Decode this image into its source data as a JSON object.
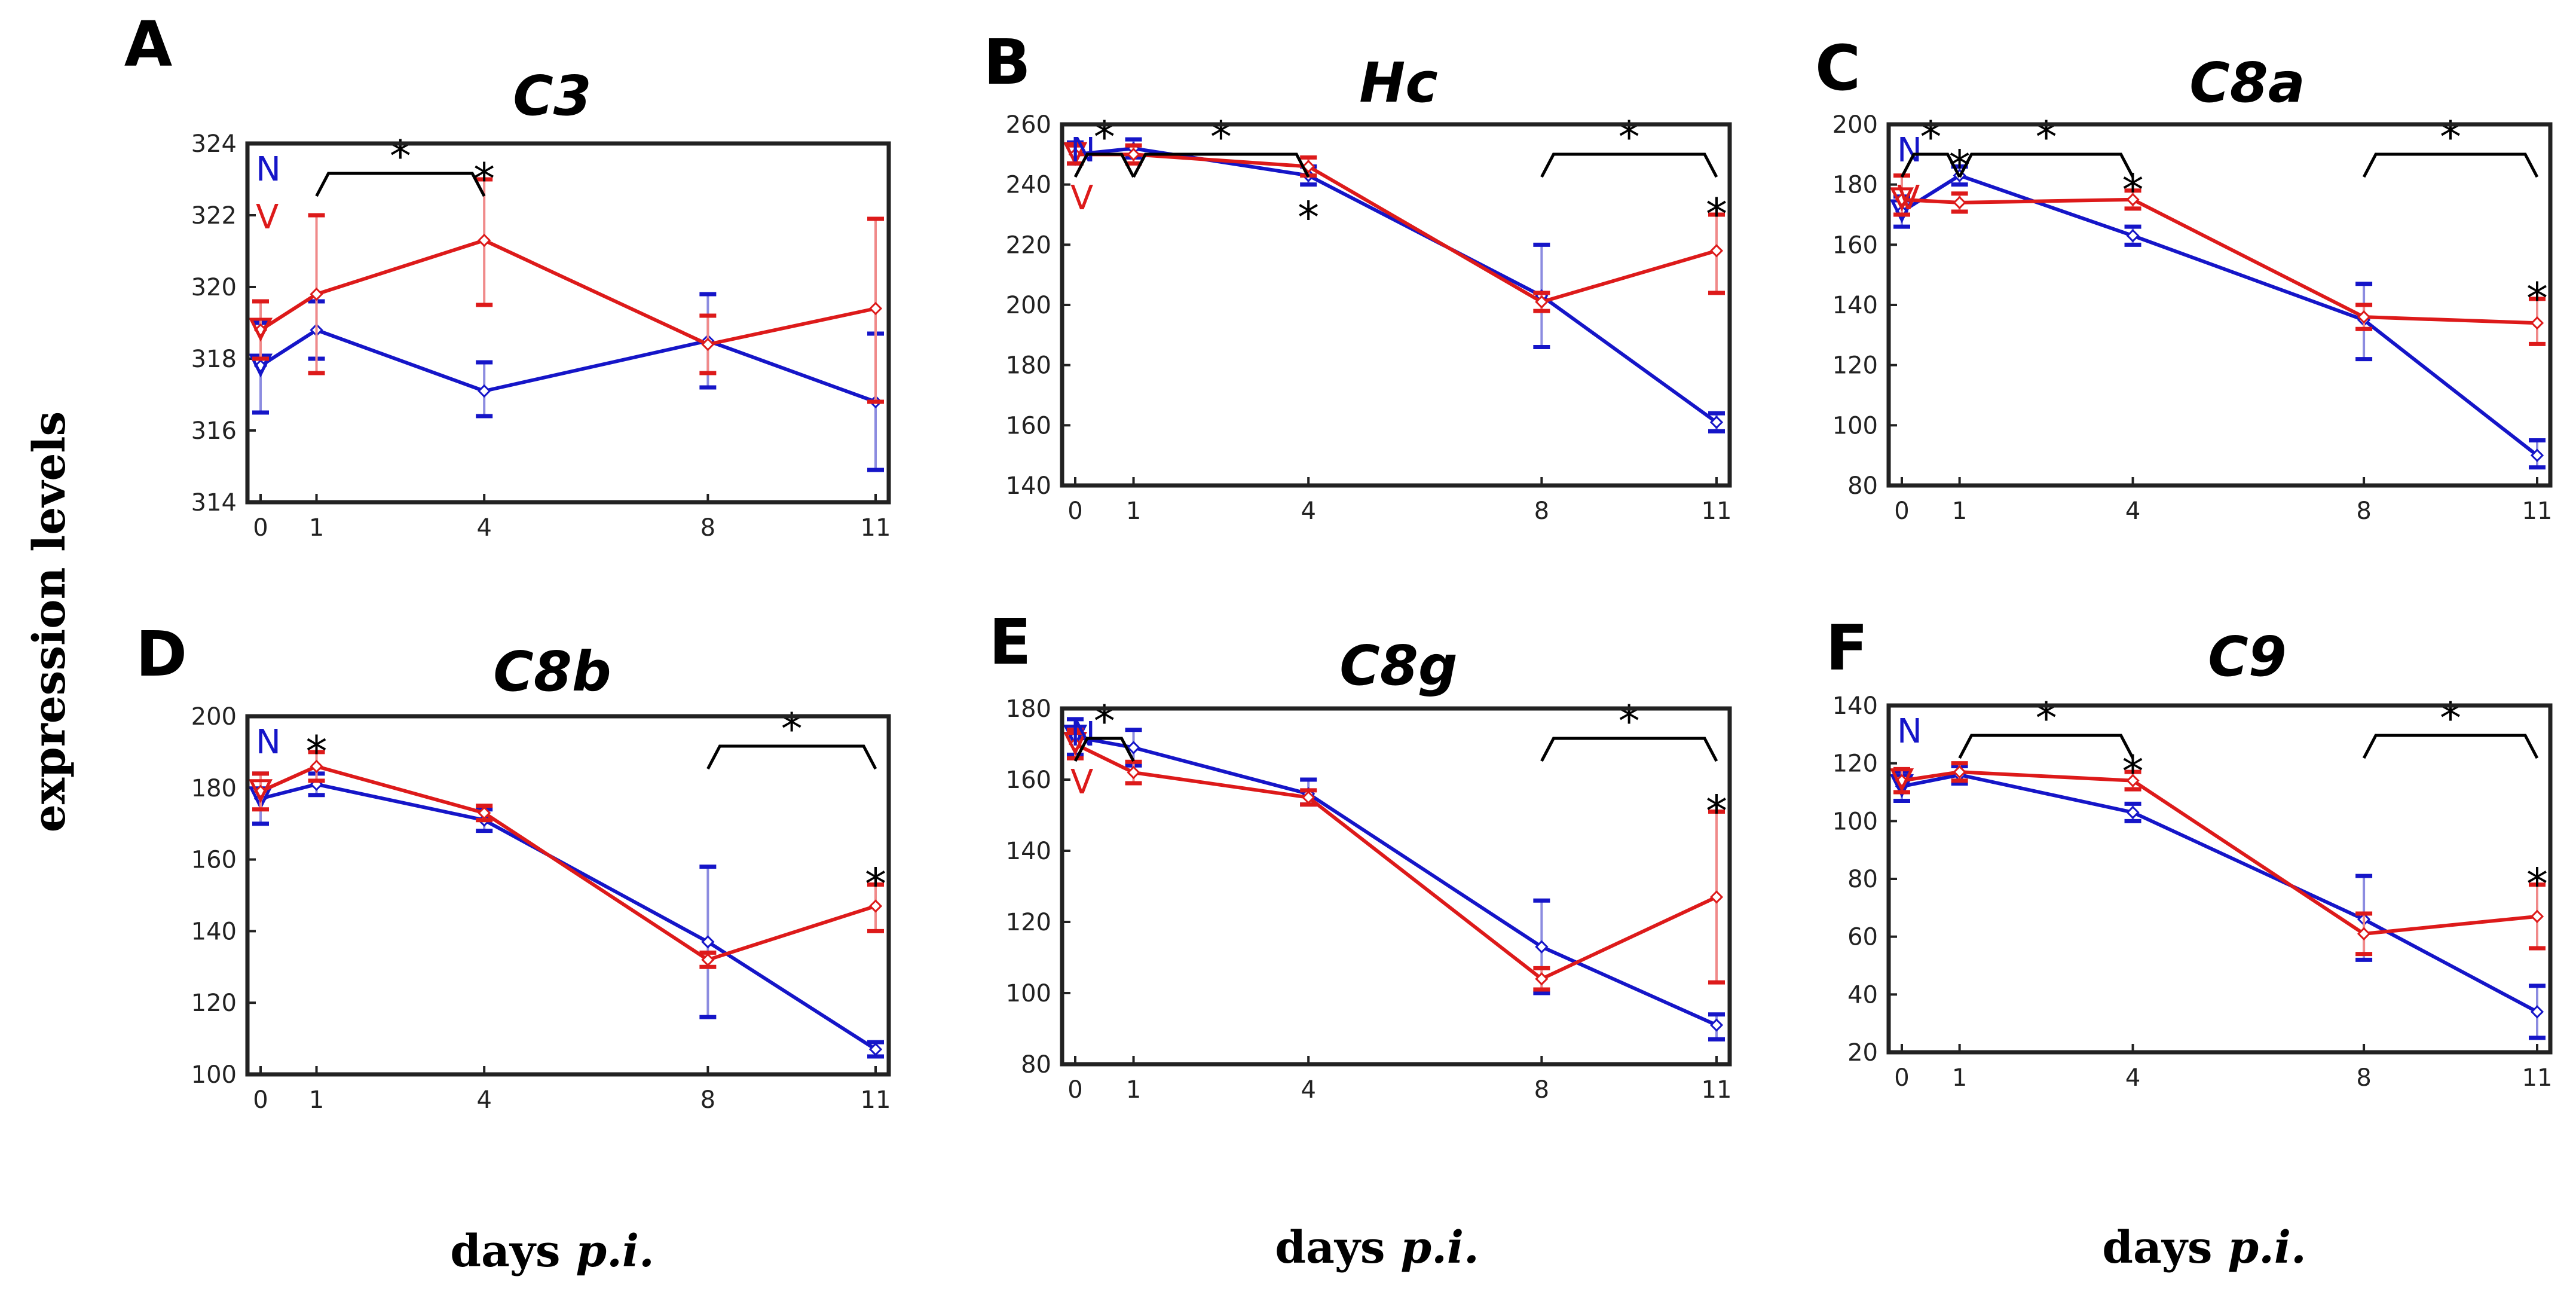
{
  "figure": {
    "ylabel": "expression levels",
    "xlabel_prefix": "days ",
    "xlabel_italic": "p.i."
  },
  "colors": {
    "N": "#1515c8",
    "V": "#dd1a1a",
    "N_err": "#8c8ce0",
    "V_err": "#f08a8a"
  },
  "chart_data": [
    {
      "type": "line",
      "panel": "A",
      "title": "C3",
      "x": [
        0,
        1,
        4,
        8,
        11
      ],
      "xticks": [
        "0",
        "1",
        "4",
        "8",
        "11"
      ],
      "ylim": [
        314,
        324
      ],
      "yticks": [
        314,
        316,
        318,
        320,
        322,
        324
      ],
      "legend": [
        "N",
        "V"
      ],
      "series": [
        {
          "name": "N",
          "values": [
            317.8,
            318.8,
            317.1,
            318.5,
            316.8
          ],
          "err_low": [
            316.5,
            318.0,
            316.4,
            317.2,
            314.9
          ],
          "err_high": [
            319.0,
            319.6,
            317.9,
            319.8,
            318.7
          ]
        },
        {
          "name": "V",
          "values": [
            318.8,
            319.8,
            321.3,
            318.4,
            319.4
          ],
          "err_low": [
            318.0,
            317.6,
            319.5,
            317.6,
            316.8
          ],
          "err_high": [
            319.6,
            322.0,
            323.0,
            319.2,
            321.9
          ]
        }
      ],
      "brackets": [
        {
          "from": 1,
          "to": 4,
          "label": "*"
        }
      ],
      "point_stars": [
        {
          "x": 4,
          "label": "*"
        }
      ],
      "low_stars": []
    },
    {
      "type": "line",
      "panel": "B",
      "title": "Hc",
      "x": [
        0,
        1,
        4,
        8,
        11
      ],
      "xticks": [
        "0",
        "1",
        "4",
        "8",
        "11"
      ],
      "ylim": [
        140,
        260
      ],
      "yticks": [
        140,
        160,
        180,
        200,
        220,
        240,
        260
      ],
      "legend": [
        "N",
        "V"
      ],
      "series": [
        {
          "name": "N",
          "values": [
            250,
            252,
            243,
            203,
            161
          ],
          "err_low": [
            247,
            249,
            240,
            186,
            158
          ],
          "err_high": [
            254,
            255,
            246,
            220,
            164
          ]
        },
        {
          "name": "V",
          "values": [
            250,
            250,
            246,
            201,
            218
          ],
          "err_low": [
            247,
            247,
            243,
            198,
            204
          ],
          "err_high": [
            253,
            253,
            249,
            204,
            230
          ]
        }
      ],
      "brackets": [
        {
          "from": 0,
          "to": 1,
          "label": "*"
        },
        {
          "from": 1,
          "to": 4,
          "label": "*"
        },
        {
          "from": 8,
          "to": 11,
          "label": "*"
        }
      ],
      "point_stars": [
        {
          "x": 11,
          "label": "*"
        }
      ],
      "low_stars": [
        {
          "x": 4,
          "label": "*"
        }
      ]
    },
    {
      "type": "line",
      "panel": "C",
      "title": "C8a",
      "x": [
        0,
        1,
        4,
        8,
        11
      ],
      "xticks": [
        "0",
        "1",
        "4",
        "8",
        "11"
      ],
      "ylim": [
        80,
        200
      ],
      "yticks": [
        80,
        100,
        120,
        140,
        160,
        180,
        200
      ],
      "legend": [
        "N",
        "V"
      ],
      "series": [
        {
          "name": "N",
          "values": [
            171,
            183,
            163,
            135,
            90
          ],
          "err_low": [
            166,
            180,
            160,
            122,
            86
          ],
          "err_high": [
            176,
            186,
            166,
            147,
            95
          ]
        },
        {
          "name": "V",
          "values": [
            175,
            174,
            175,
            136,
            134
          ],
          "err_low": [
            170,
            171,
            172,
            132,
            127
          ],
          "err_high": [
            183,
            177,
            178,
            140,
            142
          ]
        }
      ],
      "brackets": [
        {
          "from": 0,
          "to": 1,
          "label": "*"
        },
        {
          "from": 1,
          "to": 4,
          "label": "*"
        },
        {
          "from": 8,
          "to": 11,
          "label": "*"
        }
      ],
      "point_stars": [
        {
          "x": 1,
          "label": "*"
        },
        {
          "x": 4,
          "label": "*"
        },
        {
          "x": 11,
          "label": "*"
        }
      ],
      "low_stars": []
    },
    {
      "type": "line",
      "panel": "D",
      "title": "C8b",
      "x": [
        0,
        1,
        4,
        8,
        11
      ],
      "xticks": [
        "0",
        "1",
        "4",
        "8",
        "11"
      ],
      "ylim": [
        100,
        200
      ],
      "yticks": [
        100,
        120,
        140,
        160,
        180,
        200
      ],
      "legend": [
        "N"
      ],
      "series": [
        {
          "name": "N",
          "values": [
            177,
            181,
            171,
            137,
            107
          ],
          "err_low": [
            170,
            178,
            168,
            116,
            105
          ],
          "err_high": [
            184,
            184,
            174,
            158,
            109
          ]
        },
        {
          "name": "V",
          "values": [
            179,
            186,
            173,
            132,
            147
          ],
          "err_low": [
            174,
            182,
            171,
            130,
            140
          ],
          "err_high": [
            184,
            190,
            175,
            134,
            153
          ]
        }
      ],
      "brackets": [
        {
          "from": 8,
          "to": 11,
          "label": "*"
        }
      ],
      "point_stars": [
        {
          "x": 1,
          "label": "*"
        },
        {
          "x": 11,
          "label": "*"
        }
      ],
      "low_stars": []
    },
    {
      "type": "line",
      "panel": "E",
      "title": "C8g",
      "x": [
        0,
        1,
        4,
        8,
        11
      ],
      "xticks": [
        "0",
        "1",
        "4",
        "8",
        "11"
      ],
      "ylim": [
        80,
        180
      ],
      "yticks": [
        80,
        100,
        120,
        140,
        160,
        180
      ],
      "legend": [
        "N",
        "V"
      ],
      "series": [
        {
          "name": "N",
          "values": [
            172,
            169,
            156,
            113,
            91
          ],
          "err_low": [
            167,
            164,
            153,
            100,
            87
          ],
          "err_high": [
            177,
            174,
            160,
            126,
            94
          ]
        },
        {
          "name": "V",
          "values": [
            170,
            162,
            155,
            104,
            127
          ],
          "err_low": [
            166,
            159,
            153,
            101,
            103
          ],
          "err_high": [
            174,
            165,
            157,
            107,
            151
          ]
        }
      ],
      "brackets": [
        {
          "from": 0,
          "to": 1,
          "label": "*"
        },
        {
          "from": 8,
          "to": 11,
          "label": "*"
        }
      ],
      "point_stars": [
        {
          "x": 11,
          "label": "*"
        }
      ],
      "low_stars": []
    },
    {
      "type": "line",
      "panel": "F",
      "title": "C9",
      "x": [
        0,
        1,
        4,
        8,
        11
      ],
      "xticks": [
        "0",
        "1",
        "4",
        "8",
        "11"
      ],
      "ylim": [
        20,
        140
      ],
      "yticks": [
        20,
        40,
        60,
        80,
        100,
        120,
        140
      ],
      "legend": [
        "N"
      ],
      "series": [
        {
          "name": "N",
          "values": [
            112,
            116,
            103,
            66,
            34
          ],
          "err_low": [
            107,
            113,
            100,
            52,
            25
          ],
          "err_high": [
            117,
            119,
            106,
            81,
            43
          ]
        },
        {
          "name": "V",
          "values": [
            114,
            117,
            114,
            61,
            67
          ],
          "err_low": [
            110,
            114,
            111,
            54,
            56
          ],
          "err_high": [
            118,
            120,
            117,
            68,
            78
          ]
        }
      ],
      "brackets": [
        {
          "from": 1,
          "to": 4,
          "label": "*"
        },
        {
          "from": 8,
          "to": 11,
          "label": "*"
        }
      ],
      "point_stars": [
        {
          "x": 4,
          "label": "*"
        },
        {
          "x": 11,
          "label": "*"
        }
      ],
      "low_stars": []
    }
  ]
}
